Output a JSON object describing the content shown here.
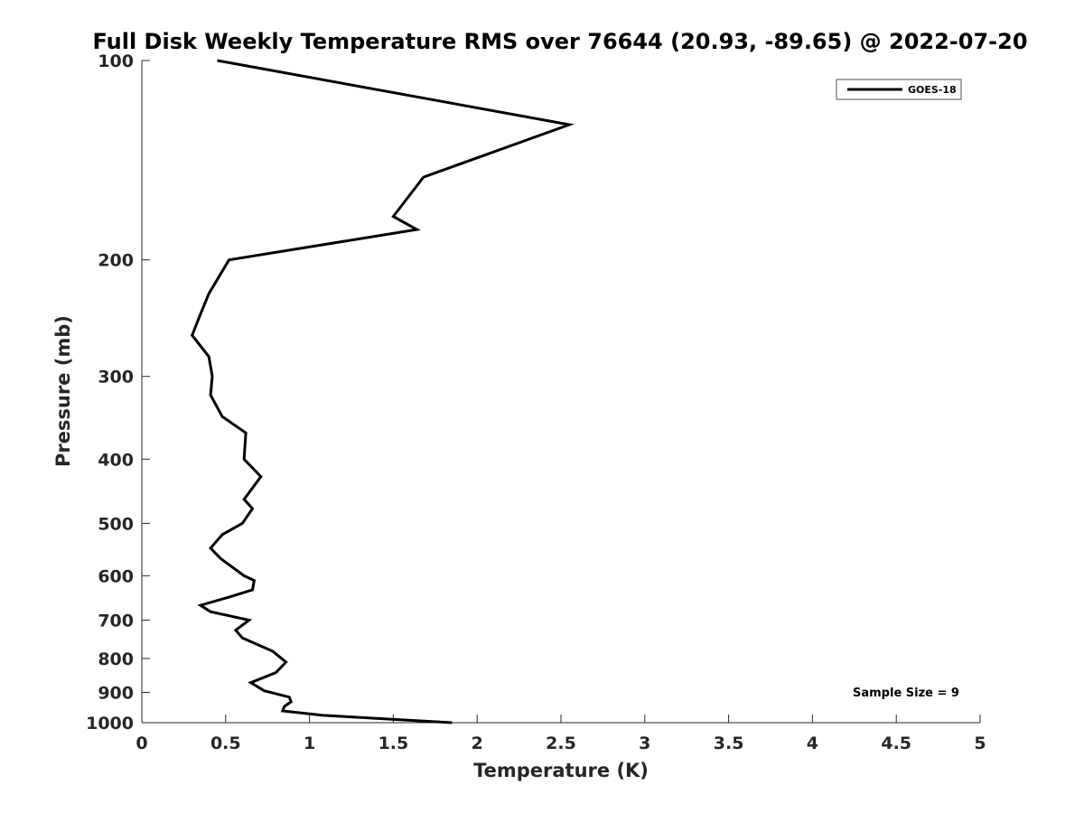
{
  "chart_data": {
    "type": "line",
    "title": "Full Disk Weekly Temperature RMS over 76644 (20.93, -89.65) @ 2022-07-20",
    "xlabel": "Temperature (K)",
    "ylabel": "Pressure (mb)",
    "xlim": [
      0,
      5
    ],
    "ylim": [
      100,
      1000
    ],
    "yscale": "log",
    "y_reversed": true,
    "grid": false,
    "legend_position": "top-right",
    "x_ticks": [
      "0",
      "0.5",
      "1",
      "1.5",
      "2",
      "2.5",
      "3",
      "3.5",
      "4",
      "4.5",
      "5"
    ],
    "y_ticks": [
      "100",
      "200",
      "300",
      "400",
      "500",
      "600",
      "700",
      "800",
      "900",
      "1000"
    ],
    "series": [
      {
        "name": "GOES-18",
        "color": "#000000",
        "points": [
          [
            0.45,
            100
          ],
          [
            2.55,
            125
          ],
          [
            1.68,
            150
          ],
          [
            1.5,
            172
          ],
          [
            1.64,
            180
          ],
          [
            0.52,
            200
          ],
          [
            0.4,
            225
          ],
          [
            0.34,
            245
          ],
          [
            0.3,
            260
          ],
          [
            0.4,
            280
          ],
          [
            0.42,
            300
          ],
          [
            0.41,
            320
          ],
          [
            0.48,
            345
          ],
          [
            0.62,
            365
          ],
          [
            0.61,
            400
          ],
          [
            0.71,
            425
          ],
          [
            0.61,
            460
          ],
          [
            0.66,
            475
          ],
          [
            0.6,
            500
          ],
          [
            0.48,
            520
          ],
          [
            0.41,
            545
          ],
          [
            0.47,
            565
          ],
          [
            0.61,
            600
          ],
          [
            0.67,
            610
          ],
          [
            0.66,
            630
          ],
          [
            0.53,
            645
          ],
          [
            0.35,
            665
          ],
          [
            0.41,
            680
          ],
          [
            0.64,
            700
          ],
          [
            0.56,
            725
          ],
          [
            0.6,
            745
          ],
          [
            0.78,
            780
          ],
          [
            0.86,
            810
          ],
          [
            0.8,
            840
          ],
          [
            0.65,
            870
          ],
          [
            0.73,
            895
          ],
          [
            0.88,
            915
          ],
          [
            0.89,
            930
          ],
          [
            0.85,
            945
          ],
          [
            0.84,
            960
          ],
          [
            1.08,
            975
          ],
          [
            1.85,
            1000
          ]
        ]
      }
    ],
    "annotation": "Sample Size = 9"
  }
}
